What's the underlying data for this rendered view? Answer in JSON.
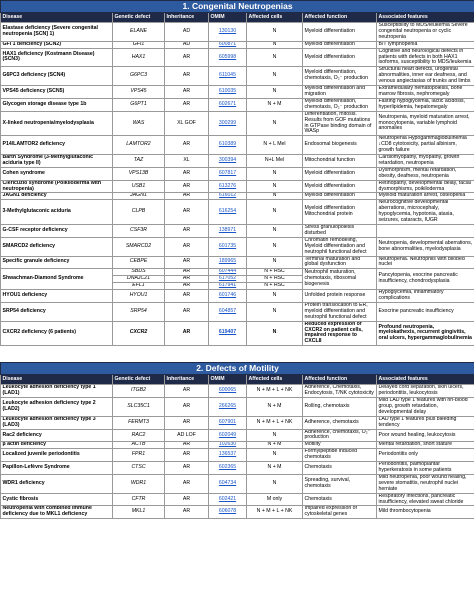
{
  "tables": [
    {
      "title": "1. Congenital Neutropenias",
      "columns": [
        "Disease",
        "Genetic defect",
        "Inheritance",
        "OMIM",
        "Affected cells",
        "Affected function",
        "Associated features"
      ],
      "rows": [
        {
          "disease": "Elastase deficiency (Severe congenital neutropenia [SCN] 1)",
          "defects": [
            [
              "ELANE",
              "AD",
              "130130",
              "N"
            ]
          ],
          "function": "Myeloid differentiation",
          "features": "Susceptibility to MDS/leukemia Severe congenital neutropenia or cyclic neutropenia"
        },
        {
          "disease": "GFI 1 deficiency (SCN2)",
          "defects": [
            [
              "GFI1",
              "AD",
              "600871",
              "N"
            ]
          ],
          "function": "Myeloid differentiation",
          "features": "B/T lymphopenia"
        },
        {
          "disease": "HAX1 deficiency (Kostmann Disease) (SCN3)",
          "defects": [
            [
              "HAX1",
              "AR",
              "605998",
              "N"
            ]
          ],
          "function": "Myeloid differentiation",
          "features": "Cognitive and neurological defects in patients with defects in both HAX1 isoforms, susceptibility to MDS/leukemia"
        },
        {
          "disease": "G6PC3 deficiency (SCN4)",
          "defects": [
            [
              "G6PC3",
              "AR",
              "611045",
              "N"
            ]
          ],
          "function": "Myeloid differentiation, chemotaxis, O₂⁻ production",
          "features": "Structural heart defects, urogenital abnormalities, inner ear deafness, and venous angiectasias of trunks and limbs"
        },
        {
          "disease": "VPS45 deficiency (SCN5)",
          "defects": [
            [
              "VPS45",
              "AR",
              "610035",
              "N"
            ]
          ],
          "function": "Myeloid differentiation and migration",
          "features": "Extramedullary hematopoiesis, bone marrow fibrosis, nephromegaly"
        },
        {
          "disease": "Glycogen storage disease type 1b",
          "defects": [
            [
              "G6PT1",
              "AR",
              "602671",
              "N + M"
            ]
          ],
          "function": "Myeloid differentiation, chemotaxis, O₂⁻ production",
          "features": "Fasting hypoglycemia, lactic acidosis, hyperlipidemia, hepatomegaly"
        },
        {
          "disease": "X-linked neutropenia/myelodysplasia",
          "defects": [
            [
              "WAS",
              "XL GOF",
              "300299",
              "N"
            ]
          ],
          "function": "Differentiation, mitosis. Results from GOF mutations in GTPase binding domain of WASp",
          "features": "Neutropenia, myeloid maturation arrest, monocytopenia, variable lymphoid anomalies"
        },
        {
          "disease": "P14/LAMTOR2 deficiency",
          "defects": [
            [
              "LAMTOR2",
              "AR",
              "610389",
              "N + L Mel"
            ]
          ],
          "function": "Endosomal biogenesis",
          "features": "Neutropenia Hypogammaglobulinemia ↓CD8 cytotoxicity, partial albinism, growth failure"
        },
        {
          "disease": "Barth Syndrome (3-Methylglutaconic aciduria type II)",
          "defects": [
            [
              "TAZ",
              "XL",
              "300394",
              "N+L Mel"
            ]
          ],
          "function": "Mitochondrial function",
          "features": "Cardiomyopathy, myopathy, growth retardation, neutropenia"
        },
        {
          "disease": "Cohen syndrome",
          "defects": [
            [
              "VPS13B",
              "AR",
              "607817",
              "N"
            ]
          ],
          "function": "Myeloid differentiation",
          "features": "Dysmorphism, mental retardation, obesity, deafness, neutropenia"
        },
        {
          "disease": "Clericuzio syndrome (Poikiloderma with neutropenia)",
          "defects": [
            [
              "USB1",
              "AR",
              "613276",
              "N"
            ]
          ],
          "function": "Myeloid differentiation",
          "features": "Retinopathy, developmental delay, facial dysmorphisms, poikiloderma"
        },
        {
          "disease": "JAGN1 deficiency",
          "defects": [
            [
              "JAGN1",
              "AR",
              "616012",
              "N"
            ]
          ],
          "function": "Myeloid differentiation",
          "features": "Myeloid maturation arrest, osteopenia"
        },
        {
          "disease": "3-Methylglutaconic aciduria",
          "defects": [
            [
              "CLPB",
              "AR",
              "616254",
              "N"
            ]
          ],
          "function": "Myeloid differentiation Mitochondrial protein",
          "features": "Neurocognitive developmental aberrations, microcephaly, hypoglycemia, hypotonia, ataxia, seizures, cataracts, IUGR"
        },
        {
          "disease": "G-CSF receptor deficiency",
          "defects": [
            [
              "CSF3R",
              "AR",
              "138971",
              "N"
            ]
          ],
          "function": "Stress granulopoiesis disturbed"
        },
        {
          "disease": "SMARCD2 deficiency",
          "defects": [
            [
              "SMARCD2",
              "AR",
              "601735",
              "N"
            ]
          ],
          "function": "Chromatin remodeling, Myeloid differentiation and neutrophil functional defect",
          "features": "Neutropenia, developmental aberrations, bone abnormalities, myelodysplasia"
        },
        {
          "disease": "Specific granule deficiency",
          "defects": [
            [
              "CEBPE",
              "AR",
              "189965",
              "N"
            ]
          ],
          "function": "Terminal maturation and global dysfunction",
          "features": "Neutropenia. Neutrophils with bilobed nuclei"
        },
        {
          "disease": "Shwachman-Diamond Syndrome",
          "defects": [
            [
              "SBDS",
              "AR",
              "607444",
              "N + HSC"
            ],
            [
              "DNAJC21",
              "AR",
              "617052",
              "N + HSC"
            ],
            [
              "EFL1",
              "AR",
              "617941",
              "N + HSC"
            ]
          ],
          "function": "Neutrophil maturation, chemotaxis, ribosomal biogenesis",
          "features": "Pancytopenia, exocrine pancreatic insufficiency, chondrodysplasia"
        },
        {
          "disease": "HYOU1 deficiency",
          "defects": [
            [
              "HYOU1",
              "AR",
              "601746",
              "N"
            ]
          ],
          "function": "Unfolded protein response",
          "features": "Hypoglycemia, inflammatory complications"
        },
        {
          "disease": "SRP54 deficiency",
          "defects": [
            [
              "SRP54",
              "AR",
              "604857",
              "N"
            ]
          ],
          "function": "Protein translocation to ER, myeloid differentiation and neutrophil functional defect",
          "features": "Exocrine pancreatic insufficiency"
        },
        {
          "disease": "CXCR2 deficiency (6 patients)",
          "bold": true,
          "defects": [
            [
              "CXCR2",
              "AR",
              "619407",
              "N"
            ]
          ],
          "function": "Reduced expression of CXCR2 on patient cells, impaired response to CXCL8",
          "features": "Profound neutropenia, myelokathexis, recurrent gingivitis, oral ulcers, hypergammaglobulinemia"
        }
      ]
    },
    {
      "title": "2. Defects of Motility",
      "columns": [
        "Disease",
        "Genetic defect",
        "Inheritance",
        "OMIM",
        "Affected cells",
        "Affected function",
        "Associated features"
      ],
      "rows": [
        {
          "disease": "Leukocyte adhesion deficiency type 1 (LAD1)",
          "defects": [
            [
              "ITGB2",
              "AR",
              "600065",
              "N + M + L + NK"
            ]
          ],
          "function": "Adherence, Chemotaxis, Endocytosis, T/NK cytotoxicity",
          "features": "Delayed cord separation, skin ulcers, periodontitis, leukocytosis"
        },
        {
          "disease": "Leukocyte adhesion deficiency type 2 (LAD2)",
          "defects": [
            [
              "SLC35C1",
              "AR",
              "266265",
              "N + M"
            ]
          ],
          "function": "Rolling, chemotaxis",
          "features": "Mild LAD type 1 features with hh-blood group, growth retardation, developmental delay"
        },
        {
          "disease": "Leukocyte adhesion deficiency type 3 (LAD3)",
          "defects": [
            [
              "FERMT3",
              "AR",
              "607901",
              "N + M + L + NK"
            ]
          ],
          "function": "Adherence, chemotaxis",
          "features": "LAD type 1 features plus bleeding tendency"
        },
        {
          "disease": "Rac2 deficiency",
          "defects": [
            [
              "RAC2",
              "AD LOF",
              "602049",
              "N"
            ]
          ],
          "function": "Adherence, chemotaxis, O₂⁻ production",
          "features": "Poor wound healing, leukocytosis"
        },
        {
          "disease": "β actin deficiency",
          "defects": [
            [
              "ACTB",
              "AR",
              "102630",
              "N + M"
            ]
          ],
          "function": "Motility",
          "features": "Mental retardation, short stature"
        },
        {
          "disease": "Localized juvenile periodontitis",
          "defects": [
            [
              "FPR1",
              "AR",
              "136537",
              "N"
            ]
          ],
          "function": "Formylpeptide induced chemotaxis",
          "features": "Periodontitis only"
        },
        {
          "disease": "Papillon-Lefèvre Syndrome",
          "defects": [
            [
              "CTSC",
              "AR",
              "602365",
              "N + M"
            ]
          ],
          "function": "Chemotaxis",
          "features": "Periodontitis, palmoplantar hyperkeratosis in some patients"
        },
        {
          "disease": "WDR1 deficiency",
          "defects": [
            [
              "WDR1",
              "AR",
              "604734",
              "N"
            ]
          ],
          "function": "Spreading, survival, chemotaxis",
          "features": "Mild neutropenia, poor wound healing, severe stomatitis, neutrophil nuclei herniate"
        },
        {
          "disease": "Cystic fibrosis",
          "defects": [
            [
              "CFTR",
              "AR",
              "602421",
              "M only"
            ]
          ],
          "function": "Chemotaxis",
          "features": "Respiratory infections, pancreatic insufficiency, elevated sweat chloride"
        },
        {
          "disease": "Neutropenia with combined immune deficiency due to MKL1 deficiency",
          "defects": [
            [
              "MKL1",
              "AR",
              "606078",
              "N + M + L + NK"
            ]
          ],
          "function": "Impaired expression of cytoskeletal genes",
          "features": "Mild thrombocytopenia"
        }
      ]
    }
  ]
}
